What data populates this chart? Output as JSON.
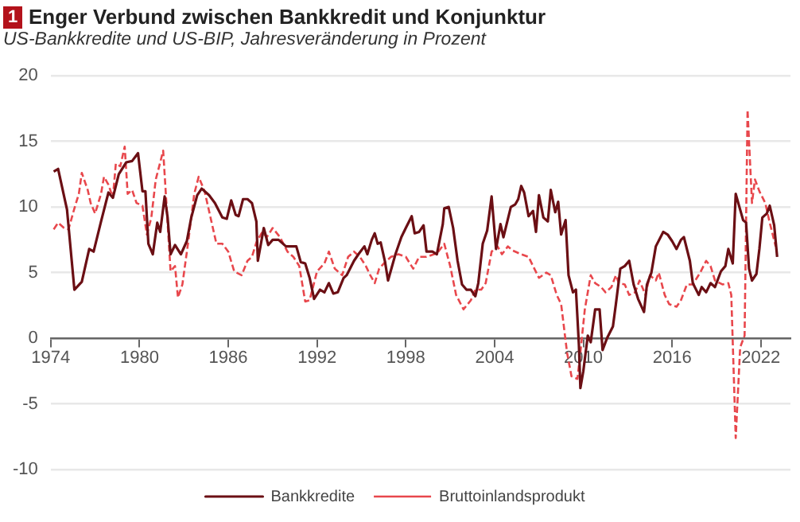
{
  "chart_data": {
    "type": "line",
    "title": "Enger Verbund zwischen Bankkredit und Konjunktur",
    "subtitle": "US-Bankkredite und US-BIP, Jahresveränderung in Prozent",
    "annotations": [
      "1"
    ],
    "xlim": [
      1974,
      2024
    ],
    "xticks": [
      1974,
      1980,
      1986,
      1992,
      1998,
      2004,
      2010,
      2016,
      2022
    ],
    "ylim": [
      -10,
      20
    ],
    "yticks": [
      -10,
      -5,
      0,
      5,
      10,
      15,
      20
    ],
    "grid": "y",
    "legend": "bottom",
    "marker": "none",
    "series": [
      {
        "name": "Bankkredite",
        "color": "#6b0f14",
        "line_style": "solid",
        "x": [
          1974.2,
          1974.5,
          1975.1,
          1975.6,
          1976.1,
          1976.6,
          1976.9,
          1977.4,
          1977.9,
          1978.2,
          1978.6,
          1979.1,
          1979.5,
          1979.9,
          1980.2,
          1980.4,
          1980.6,
          1980.9,
          1981.2,
          1981.4,
          1981.7,
          1981.9,
          1982.1,
          1982.4,
          1982.8,
          1983.2,
          1983.5,
          1983.9,
          1984.2,
          1984.7,
          1985.1,
          1985.6,
          1985.9,
          1986.2,
          1986.5,
          1986.7,
          1987.0,
          1987.3,
          1987.6,
          1987.9,
          1988.0,
          1988.4,
          1988.7,
          1989.0,
          1989.4,
          1989.9,
          1990.6,
          1990.9,
          1991.2,
          1991.5,
          1991.8,
          1992.2,
          1992.5,
          1992.8,
          1993.1,
          1993.4,
          1993.8,
          1994.0,
          1994.5,
          1994.8,
          1995.2,
          1995.4,
          1995.7,
          1995.9,
          1996.1,
          1996.3,
          1996.6,
          1996.8,
          1997.3,
          1997.7,
          1998.0,
          1998.4,
          1998.6,
          1998.9,
          1999.2,
          1999.4,
          1999.8,
          2000.1,
          2000.5,
          2000.6,
          2000.9,
          2001.2,
          2001.5,
          2001.8,
          2002.1,
          2002.4,
          2002.7,
          2002.9,
          2003.2,
          2003.5,
          2003.8,
          2004.1,
          2004.4,
          2004.6,
          2005.1,
          2005.4,
          2005.6,
          2005.8,
          2006.0,
          2006.3,
          2006.6,
          2006.8,
          2007.0,
          2007.3,
          2007.6,
          2007.8,
          2008.1,
          2008.3,
          2008.5,
          2008.8,
          2009.0,
          2009.3,
          2009.5,
          2009.7,
          2009.8,
          2010.0,
          2010.3,
          2010.5,
          2010.8,
          2011.1,
          2011.3,
          2011.6,
          2012.0,
          2012.2,
          2012.5,
          2012.8,
          2013.1,
          2013.4,
          2013.7,
          2014.1,
          2014.3,
          2014.6,
          2014.9,
          2015.4,
          2015.7,
          2016.0,
          2016.3,
          2016.6,
          2016.8,
          2017.2,
          2017.4,
          2017.8,
          2018.0,
          2018.3,
          2018.6,
          2018.9,
          2019.3,
          2019.6,
          2019.8,
          2020.1,
          2020.3,
          2020.5,
          2020.8,
          2021.0,
          2021.2,
          2021.4,
          2021.7,
          2021.9,
          2022.1,
          2022.4,
          2022.6,
          2022.9,
          2023.1
        ],
        "values": [
          12.7,
          12.9,
          9.8,
          3.7,
          4.3,
          6.8,
          6.6,
          8.9,
          11.1,
          10.7,
          12.5,
          13.4,
          13.5,
          14.1,
          11.2,
          11.2,
          7.2,
          6.4,
          8.8,
          8.1,
          10.8,
          9.2,
          6.4,
          7.1,
          6.4,
          7.4,
          9.2,
          10.9,
          11.4,
          10.9,
          10.3,
          9.2,
          9.1,
          10.5,
          9.4,
          9.3,
          10.6,
          10.6,
          10.3,
          8.9,
          5.9,
          8.4,
          7.1,
          7.5,
          7.5,
          7.0,
          7.0,
          5.8,
          5.7,
          4.6,
          3.0,
          3.7,
          3.5,
          4.2,
          3.4,
          3.5,
          4.6,
          4.8,
          5.9,
          6.4,
          7.0,
          6.4,
          7.5,
          8.0,
          7.2,
          7.3,
          5.8,
          4.4,
          6.4,
          7.7,
          8.4,
          9.3,
          8.0,
          8.1,
          8.6,
          6.6,
          6.6,
          6.4,
          8.7,
          9.9,
          10.0,
          8.4,
          5.9,
          4.1,
          3.7,
          3.7,
          3.2,
          4.2,
          7.2,
          8.2,
          10.8,
          6.8,
          8.7,
          7.7,
          10.0,
          10.2,
          10.6,
          11.6,
          11.1,
          9.3,
          9.7,
          8.1,
          10.9,
          9.2,
          8.9,
          11.3,
          9.6,
          10.4,
          7.9,
          9.0,
          4.8,
          3.5,
          3.7,
          -0.5,
          -3.8,
          -2.5,
          0.2,
          -0.3,
          2.2,
          2.2,
          -0.9,
          0.0,
          0.9,
          2.6,
          5.3,
          5.5,
          5.9,
          4.1,
          3.0,
          2.0,
          4.1,
          5.0,
          7.0,
          8.1,
          7.9,
          7.4,
          6.8,
          7.5,
          7.7,
          5.9,
          4.2,
          3.3,
          3.9,
          3.5,
          4.2,
          3.9,
          5.1,
          5.5,
          6.8,
          5.7,
          11.0,
          10.2,
          9.0,
          8.8,
          5.3,
          4.4,
          4.9,
          6.8,
          9.2,
          9.5,
          10.1,
          8.6,
          6.2
        ]
      },
      {
        "name": "Bruttoinlandsprodukt",
        "color": "#e8474c",
        "line_style": "dashed",
        "x": [
          1974.2,
          1974.5,
          1974.9,
          1975.2,
          1975.6,
          1975.9,
          1976.1,
          1976.5,
          1976.7,
          1977.0,
          1977.4,
          1977.6,
          1977.9,
          1978.2,
          1978.4,
          1978.7,
          1979.0,
          1979.2,
          1979.5,
          1979.8,
          1980.2,
          1980.5,
          1980.8,
          1981.1,
          1981.4,
          1981.6,
          1981.9,
          1982.1,
          1982.4,
          1982.6,
          1982.9,
          1983.3,
          1983.7,
          1984.0,
          1984.4,
          1984.7,
          1985.2,
          1985.6,
          1986.0,
          1986.4,
          1986.9,
          1987.3,
          1987.6,
          1987.9,
          1988.3,
          1988.6,
          1989.0,
          1989.5,
          1990.0,
          1990.4,
          1990.8,
          1991.2,
          1991.5,
          1992.0,
          1992.5,
          1992.8,
          1993.2,
          1993.7,
          1994.1,
          1994.5,
          1994.9,
          1995.3,
          1995.6,
          1995.9,
          1996.2,
          1996.6,
          1997.0,
          1997.5,
          1998.0,
          1998.5,
          1998.9,
          1999.4,
          1999.9,
          2000.2,
          2000.6,
          2001.0,
          2001.4,
          2001.9,
          2002.4,
          2002.7,
          2003.1,
          2003.4,
          2003.8,
          2004.2,
          2004.5,
          2004.9,
          2005.2,
          2005.8,
          2006.3,
          2006.6,
          2007.0,
          2007.5,
          2007.8,
          2008.2,
          2008.5,
          2008.9,
          2009.2,
          2009.6,
          2009.8,
          2010.1,
          2010.5,
          2010.8,
          2011.2,
          2011.5,
          2011.9,
          2012.2,
          2012.4,
          2012.8,
          2013.1,
          2013.5,
          2013.8,
          2014.2,
          2014.5,
          2014.9,
          2015.1,
          2015.5,
          2015.8,
          2016.3,
          2016.6,
          2017.0,
          2017.4,
          2017.9,
          2018.3,
          2018.6,
          2018.9,
          2019.4,
          2019.8,
          2020.0,
          2020.3,
          2020.6,
          2020.9,
          2021.1,
          2021.4,
          2021.6,
          2021.9,
          2022.3,
          2022.6,
          2023.0
        ],
        "values": [
          8.3,
          8.8,
          8.4,
          8.3,
          9.9,
          11.0,
          12.6,
          11.3,
          10.3,
          9.5,
          11.0,
          12.3,
          11.7,
          10.7,
          13.3,
          13.1,
          14.6,
          11.0,
          11.3,
          10.3,
          10.1,
          7.9,
          9.2,
          12.1,
          13.4,
          14.3,
          8.8,
          5.1,
          5.5,
          3.1,
          4.1,
          7.4,
          11.0,
          12.3,
          11.2,
          9.7,
          7.2,
          7.2,
          6.6,
          5.1,
          4.8,
          5.9,
          6.2,
          7.3,
          8.1,
          7.7,
          8.4,
          7.7,
          6.6,
          6.2,
          5.5,
          2.8,
          2.9,
          5.1,
          5.7,
          6.6,
          5.3,
          4.8,
          6.2,
          6.6,
          6.2,
          5.5,
          4.8,
          4.2,
          5.3,
          5.8,
          6.2,
          6.4,
          6.2,
          5.3,
          6.2,
          6.2,
          6.4,
          6.6,
          7.2,
          5.5,
          3.3,
          2.2,
          2.9,
          3.7,
          3.7,
          4.2,
          6.6,
          7.0,
          6.4,
          7.0,
          6.7,
          6.4,
          6.2,
          5.5,
          4.6,
          5.0,
          4.8,
          3.3,
          2.6,
          -1.1,
          -2.9,
          -3.1,
          -1.1,
          2.2,
          4.8,
          4.2,
          3.9,
          3.5,
          3.9,
          4.8,
          4.2,
          4.1,
          3.3,
          3.5,
          4.4,
          3.3,
          4.8,
          4.4,
          5.0,
          3.3,
          2.6,
          2.4,
          2.9,
          4.1,
          4.1,
          5.0,
          5.9,
          5.5,
          4.4,
          4.1,
          4.2,
          3.3,
          -7.6,
          -0.7,
          0.2,
          17.4,
          10.3,
          12.1,
          11.2,
          10.3,
          8.8,
          7.0
        ]
      }
    ]
  }
}
